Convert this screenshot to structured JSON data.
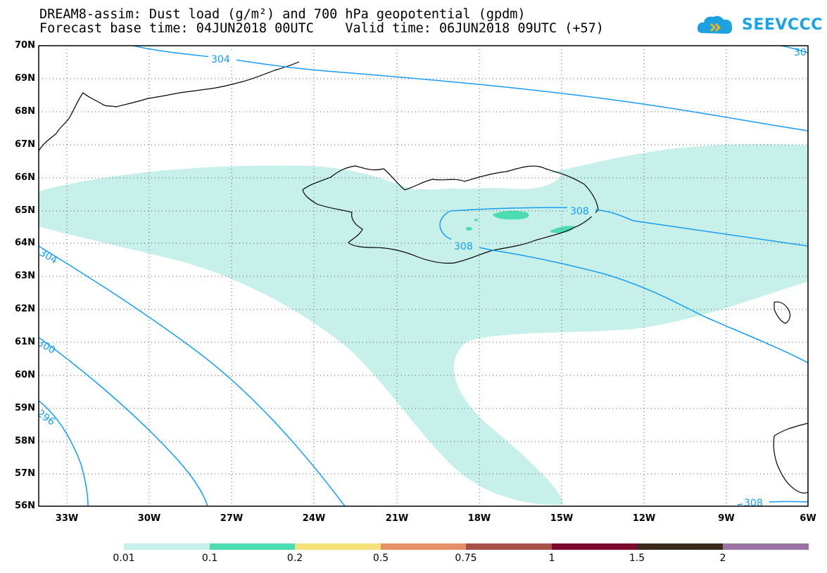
{
  "header": {
    "title_line1": "DREAM8-assim: Dust load (g/m²) and 700 hPa geopotential (gpdm)",
    "title_line2": "Forecast base time: 04JUN2018 00UTC    Valid time: 06JUN2018 09UTC (+57)"
  },
  "logo": {
    "text": "SEEVCCC",
    "icon": "cloud-icon",
    "color": "#1da1e0"
  },
  "map": {
    "lat_labels": [
      "70N",
      "69N",
      "68N",
      "67N",
      "66N",
      "65N",
      "64N",
      "63N",
      "62N",
      "61N",
      "60N",
      "59N",
      "58N",
      "57N",
      "56N"
    ],
    "lon_labels": [
      "33W",
      "30W",
      "27W",
      "24W",
      "21W",
      "18W",
      "15W",
      "12W",
      "9W",
      "6W"
    ],
    "contour_labels": [
      "304",
      "308",
      "308",
      "308",
      "304",
      "300",
      "296",
      "30"
    ],
    "contour_color": "#1a9cf0",
    "dust_color_low": "#c7f0ea",
    "dust_color_mid": "#4cdcb0",
    "gridline_style": "dotted",
    "coast_color": "#000000"
  },
  "colorbar": {
    "labels": [
      "0.01",
      "0.1",
      "0.2",
      "0.5",
      "0.75",
      "1",
      "1.5",
      "2"
    ],
    "colors": [
      "#c7f0ea",
      "#4cdcb0",
      "#f5e278",
      "#e59068",
      "#a65248",
      "#7a0a2e",
      "#3a2a1a",
      "#9a72a4"
    ]
  }
}
